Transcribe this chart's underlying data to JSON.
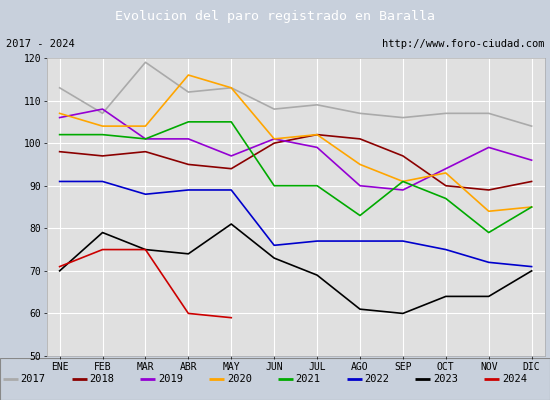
{
  "title": "Evolucion del paro registrado en Baralla",
  "subtitle_left": "2017 - 2024",
  "subtitle_right": "http://www.foro-ciudad.com",
  "months": [
    "ENE",
    "FEB",
    "MAR",
    "ABR",
    "MAY",
    "JUN",
    "JUL",
    "AGO",
    "SEP",
    "OCT",
    "NOV",
    "DIC"
  ],
  "ylim": [
    50,
    120
  ],
  "yticks": [
    50,
    60,
    70,
    80,
    90,
    100,
    110,
    120
  ],
  "series": {
    "2017": {
      "color": "#aaaaaa",
      "values": [
        113,
        107,
        119,
        112,
        113,
        108,
        109,
        107,
        106,
        107,
        107,
        104
      ]
    },
    "2018": {
      "color": "#8b0000",
      "values": [
        98,
        97,
        98,
        95,
        94,
        100,
        102,
        101,
        97,
        90,
        89,
        91
      ]
    },
    "2019": {
      "color": "#9400d3",
      "values": [
        106,
        108,
        101,
        101,
        97,
        101,
        99,
        90,
        89,
        94,
        99,
        96
      ]
    },
    "2020": {
      "color": "#ffa500",
      "values": [
        107,
        104,
        104,
        116,
        113,
        101,
        102,
        95,
        91,
        93,
        84,
        85
      ]
    },
    "2021": {
      "color": "#00aa00",
      "values": [
        102,
        102,
        101,
        105,
        105,
        90,
        90,
        83,
        91,
        87,
        79,
        85
      ]
    },
    "2022": {
      "color": "#0000cc",
      "values": [
        91,
        91,
        88,
        89,
        89,
        76,
        77,
        77,
        77,
        75,
        72,
        71
      ]
    },
    "2023": {
      "color": "#000000",
      "values": [
        70,
        79,
        75,
        74,
        81,
        73,
        69,
        61,
        60,
        64,
        64,
        70
      ]
    },
    "2024": {
      "color": "#cc0000",
      "values": [
        71,
        75,
        75,
        60,
        59,
        null,
        null,
        null,
        null,
        null,
        null,
        null
      ]
    }
  },
  "background_color": "#c8d0dc",
  "plot_bg_color": "#e0e0e0",
  "title_bg_color": "#4a86c8",
  "title_color": "#ffffff",
  "grid_color": "#ffffff",
  "subtitle_bg": "#ffffff",
  "legend_bg": "#ffffff",
  "legend_colors": {
    "2017": "#aaaaaa",
    "2018": "#8b0000",
    "2019": "#9400d3",
    "2020": "#ffa500",
    "2021": "#00aa00",
    "2022": "#0000cc",
    "2023": "#000000",
    "2024": "#cc0000"
  }
}
